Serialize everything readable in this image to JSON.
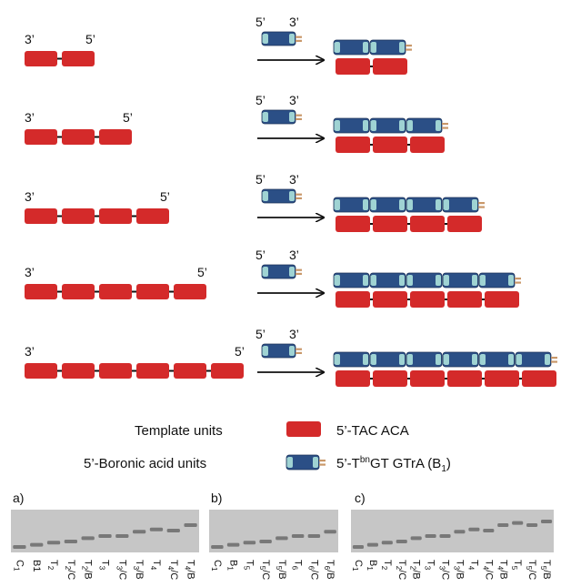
{
  "rows": [
    {
      "template_units": 2,
      "product_units": 2
    },
    {
      "template_units": 3,
      "product_units": 3
    },
    {
      "template_units": 4,
      "product_units": 4
    },
    {
      "template_units": 5,
      "product_units": 5
    },
    {
      "template_units": 6,
      "product_units": 6
    }
  ],
  "end_labels": {
    "three_prime": "3’",
    "five_prime": "5’"
  },
  "legend": {
    "template_label": "Template units",
    "template_sequence": "5’-TAC ACA",
    "boronic_label": "5’-Boronic acid units",
    "boronic_sequence_prefix": "5’-T",
    "boronic_sequence_sup": "bn",
    "boronic_sequence_mid": "GT GTrA (B",
    "boronic_sequence_sub": "1",
    "boronic_sequence_end": ")"
  },
  "gels": [
    {
      "label": "a)",
      "lanes": [
        {
          "base": "C",
          "sub": "1"
        },
        {
          "base": "B1",
          "sub": ""
        },
        {
          "base": "T",
          "sub": "2"
        },
        {
          "base": "T",
          "sub": "2",
          "suffix": "/C"
        },
        {
          "base": "T",
          "sub": "2",
          "suffix": "/B"
        },
        {
          "base": "T",
          "sub": "3"
        },
        {
          "base": "T",
          "sub": "3",
          "suffix": "/C"
        },
        {
          "base": "T",
          "sub": "3",
          "suffix": "/B"
        },
        {
          "base": "T",
          "sub": "4"
        },
        {
          "base": "T",
          "sub": "4",
          "suffix": "/C"
        },
        {
          "base": "T",
          "sub": "4",
          "suffix": "/B"
        }
      ]
    },
    {
      "label": "b)",
      "lanes": [
        {
          "base": "C",
          "sub": "1"
        },
        {
          "base": "B",
          "sub": "1"
        },
        {
          "base": "T",
          "sub": "5"
        },
        {
          "base": "T",
          "sub": "5",
          "suffix": "/C"
        },
        {
          "base": "T",
          "sub": "5",
          "suffix": "/B"
        },
        {
          "base": "T",
          "sub": "6"
        },
        {
          "base": "T",
          "sub": "6",
          "suffix": "/C"
        },
        {
          "base": "T",
          "sub": "6",
          "suffix": "/B"
        }
      ]
    },
    {
      "label": "c)",
      "lanes": [
        {
          "base": "C",
          "sub": "1"
        },
        {
          "base": "B",
          "sub": "1"
        },
        {
          "base": "T",
          "sub": "2"
        },
        {
          "base": "T",
          "sub": "2",
          "suffix": "/C"
        },
        {
          "base": "T",
          "sub": "2",
          "suffix": "/B"
        },
        {
          "base": "T",
          "sub": "3"
        },
        {
          "base": "T",
          "sub": "3",
          "suffix": "/C"
        },
        {
          "base": "T",
          "sub": "3",
          "suffix": "/B"
        },
        {
          "base": "T",
          "sub": "4"
        },
        {
          "base": "T",
          "sub": "4",
          "suffix": "/C"
        },
        {
          "base": "T",
          "sub": "4",
          "suffix": "/B"
        },
        {
          "base": "T",
          "sub": "5"
        },
        {
          "base": "T",
          "sub": "5",
          "suffix": "/C"
        },
        {
          "base": "T",
          "sub": "5",
          "suffix": "/B"
        }
      ]
    }
  ],
  "colors": {
    "template_red": "#d42a2a",
    "boronic_blue": "#2b4f86",
    "boronic_end": "#9fd3d3",
    "tail": "#c9986a",
    "gel_bg": "#c6c6c6",
    "band": "#6a6a6a"
  }
}
